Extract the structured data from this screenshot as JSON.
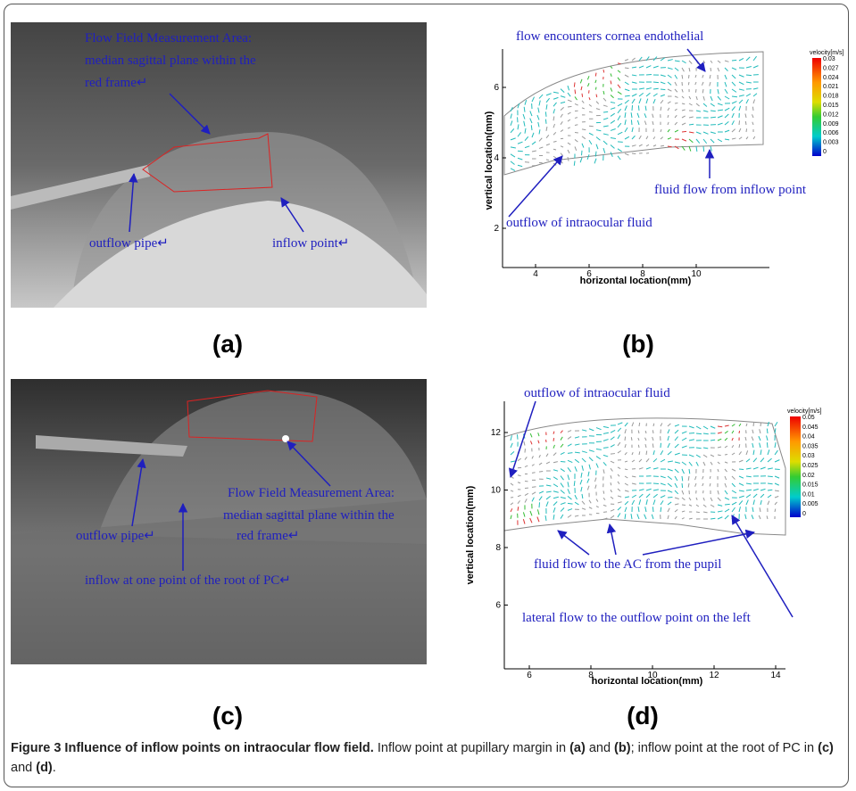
{
  "panels": [
    {
      "label": "(a)",
      "annotations": [
        "Flow Field Measurement Area:",
        "median sagittal plane within the",
        "red frame↵",
        "outflow pipe↵",
        "inflow point↵"
      ]
    },
    {
      "label": "(b)",
      "annotations": [
        "flow encounters cornea endothelial",
        "fluid flow from inflow point",
        "outflow of intraocular fluid"
      ],
      "xlabel": "horizontal location(mm)",
      "ylabel": "vertical location(mm)",
      "xticks": [
        4,
        6,
        8,
        10
      ],
      "yticks": [
        6,
        4,
        2
      ],
      "colorbar_title": "velocity[m/s]",
      "colorbar_ticks": [
        0.03,
        0.027,
        0.024,
        0.021,
        0.018,
        0.015,
        0.012,
        0.009,
        0.006,
        0.003,
        0
      ]
    },
    {
      "label": "(c)",
      "annotations": [
        "Flow Field Measurement Area:",
        "median sagittal plane within the",
        "red frame↵",
        "outflow pipe↵",
        "inflow at one point of the root of PC↵"
      ]
    },
    {
      "label": "(d)",
      "annotations": [
        "outflow of intraocular fluid",
        "fluid flow to the AC from the pupil",
        "lateral flow to the outflow point on the left"
      ],
      "xlabel": "horizontal location(mm)",
      "ylabel": "vertical location(mm)",
      "xticks": [
        6,
        8,
        10,
        12,
        14
      ],
      "yticks": [
        12,
        10,
        8,
        6
      ],
      "colorbar_title": "velocity[m/s]",
      "colorbar_ticks": [
        0.05,
        0.045,
        0.04,
        0.035,
        0.03,
        0.025,
        0.02,
        0.015,
        0.01,
        0.005,
        0
      ]
    }
  ],
  "caption": {
    "title": "Figure 3 Influence of inflow points on intraocular flow field.",
    "segments": [
      " Inflow point at pupillary margin in ",
      "(a)",
      " and ",
      "(b)",
      "; inflow point at the root of PC in ",
      "(c)",
      " and ",
      "(d)",
      "."
    ]
  }
}
